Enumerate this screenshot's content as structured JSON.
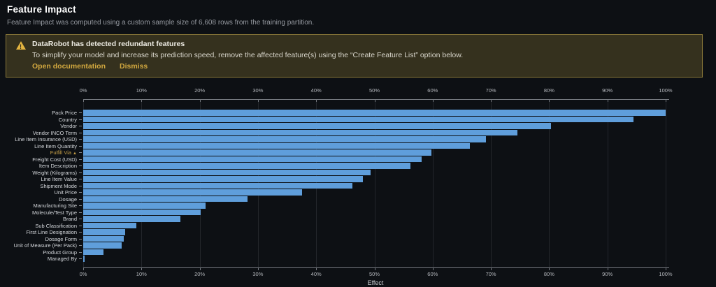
{
  "page": {
    "title": "Feature Impact",
    "subtitle": "Feature Impact was computed using a custom sample size of 6,608 rows from the training partition."
  },
  "banner": {
    "icon": "warning-triangle-icon",
    "heading": "DataRobot has detected redundant features",
    "body": "To simplify your model and increase its prediction speed, remove the affected feature(s) using the “Create Feature List” option below.",
    "links": {
      "open_docs": "Open documentation",
      "dismiss": "Dismiss"
    },
    "accent_color": "#d2a83f",
    "background_color": "#35311e",
    "border_color": "#8b7939"
  },
  "chart_data": {
    "type": "bar",
    "orientation": "horizontal",
    "title": "",
    "xlabel": "Effect",
    "ylabel": "",
    "xlim": [
      0,
      100
    ],
    "grid": true,
    "x_ticks": [
      "0%",
      "10%",
      "20%",
      "30%",
      "40%",
      "50%",
      "60%",
      "70%",
      "80%",
      "90%",
      "100%"
    ],
    "bar_color": "#5f9edb",
    "redundant_label_color": "#c7a148",
    "categories": [
      "Pack Price",
      "Country",
      "Vendor",
      "Vendor INCO Term",
      "Line Item Insurance (USD)",
      "Line Item Quantity",
      "Fulfill Via",
      "Freight Cost (USD)",
      "Item Description",
      "Weight (Kilograms)",
      "Line Item Value",
      "Shipment Mode",
      "Unit Price",
      "Dosage",
      "Manufacturing Site",
      "Molecule/Test Type",
      "Brand",
      "Sub Classification",
      "First Line Designation",
      "Dosage Form",
      "Unit of Measure (Per Pack)",
      "Product Group",
      "Managed By"
    ],
    "values": [
      100,
      94.5,
      80.3,
      74.5,
      69.1,
      66.4,
      59.8,
      58.1,
      56.2,
      49.3,
      48.0,
      46.2,
      37.6,
      28.2,
      21.0,
      20.2,
      16.7,
      9.1,
      7.2,
      7.0,
      6.6,
      3.5,
      0.3
    ],
    "redundant": [
      "Fulfill Via"
    ]
  }
}
